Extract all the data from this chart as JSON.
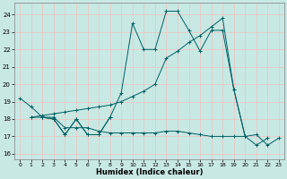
{
  "bg_color": "#c8e8e4",
  "grid_color": "#f0c0c0",
  "line_color": "#005f5f",
  "xlabel": "Humidex (Indice chaleur)",
  "xlim": [
    -0.5,
    23.5
  ],
  "ylim": [
    15.7,
    24.7
  ],
  "xticks": [
    0,
    1,
    2,
    3,
    4,
    5,
    6,
    7,
    8,
    9,
    10,
    11,
    12,
    13,
    14,
    15,
    16,
    17,
    18,
    19,
    20,
    21,
    22,
    23
  ],
  "yticks": [
    16,
    17,
    18,
    19,
    20,
    21,
    22,
    23,
    24
  ],
  "series": [
    {
      "x": [
        0,
        1,
        2,
        3,
        4,
        5,
        6,
        7,
        8,
        9,
        10,
        11,
        12,
        13,
        14,
        15,
        16,
        17,
        18,
        19,
        20,
        21,
        22
      ],
      "y": [
        19.2,
        18.7,
        18.1,
        18.0,
        17.1,
        18.0,
        17.1,
        17.1,
        18.1,
        19.5,
        23.5,
        22.0,
        22.0,
        24.2,
        24.2,
        23.1,
        21.9,
        23.1,
        23.1,
        19.7,
        17.0,
        16.5,
        16.9
      ]
    },
    {
      "x": [
        2,
        3,
        4,
        5,
        6,
        7,
        8
      ],
      "y": [
        18.1,
        18.0,
        17.1,
        18.0,
        17.1,
        17.1,
        18.1
      ]
    },
    {
      "x": [
        1,
        2,
        3,
        4,
        5,
        6,
        7,
        8,
        9,
        10,
        11,
        12,
        13,
        14,
        15,
        16,
        17,
        18,
        19,
        20
      ],
      "y": [
        18.1,
        18.2,
        18.3,
        18.4,
        18.5,
        18.6,
        18.7,
        18.8,
        19.0,
        19.3,
        19.6,
        20.0,
        21.5,
        21.9,
        22.4,
        22.8,
        23.3,
        23.8,
        19.7,
        17.0
      ]
    },
    {
      "x": [
        1,
        2,
        3,
        4,
        5,
        6,
        7,
        8,
        9,
        10,
        11,
        12,
        13,
        14,
        15,
        16,
        17,
        18,
        19,
        20,
        21,
        22,
        23
      ],
      "y": [
        18.1,
        18.1,
        18.1,
        17.5,
        17.5,
        17.5,
        17.3,
        17.2,
        17.2,
        17.2,
        17.2,
        17.2,
        17.3,
        17.3,
        17.2,
        17.1,
        17.0,
        17.0,
        17.0,
        17.0,
        17.1,
        16.5,
        16.9
      ]
    }
  ]
}
